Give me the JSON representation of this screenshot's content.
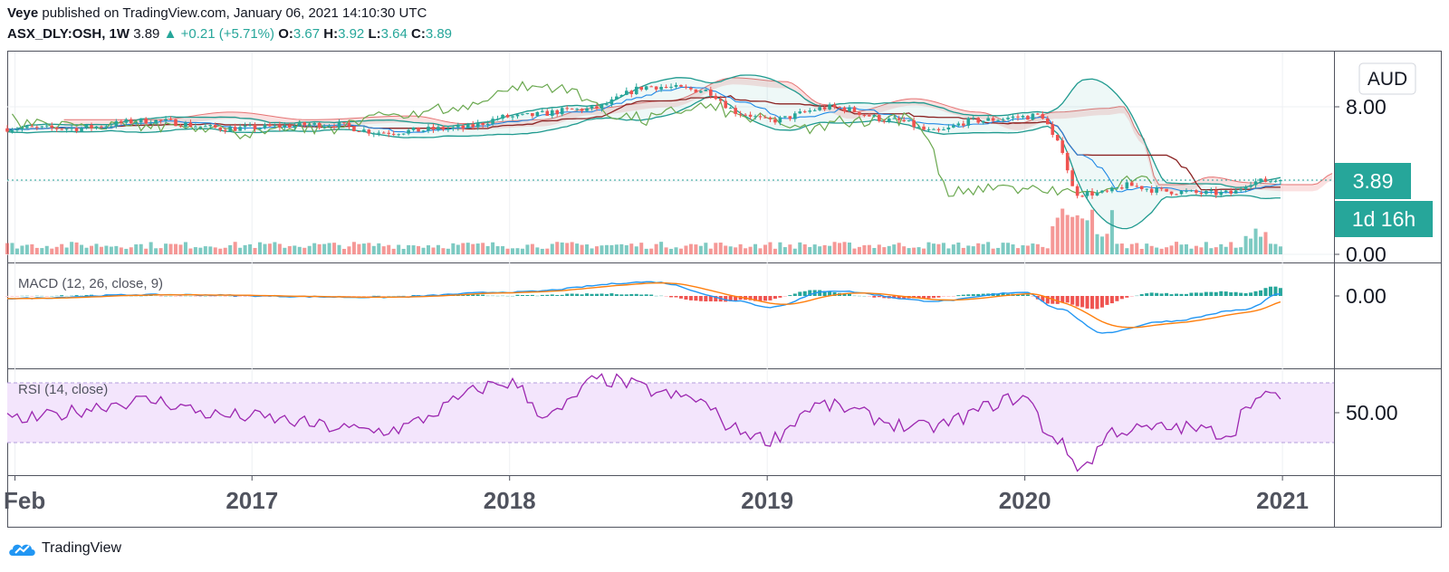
{
  "header": {
    "author": "Veye",
    "published_text": "published on TradingView.com, January 06, 2021 14:10:30 UTC",
    "symbol": "ASX_DLY:OSH, 1W",
    "last": "3.89",
    "change": "+0.21 (+5.71%)",
    "ohlc": [
      {
        "label": "O:",
        "value": "3.67"
      },
      {
        "label": "H:",
        "value": "3.92"
      },
      {
        "label": "L:",
        "value": "3.64"
      },
      {
        "label": "C:",
        "value": "3.89"
      }
    ]
  },
  "currency_label": "AUD",
  "price_badge": "3.89",
  "timer_badge": "1d 16h",
  "footer": {
    "brand": "TradingView"
  },
  "colors": {
    "up": "#26a69a",
    "down": "#ef5350",
    "bb": "#1f9a8f",
    "macd": "#2196f3",
    "signal": "#ff7f0e",
    "rsi": "#9c27b0",
    "rsi_band": "#f3e5fc",
    "lagging": "#6aa84f",
    "baseline": "#8b2323",
    "conversion": "#1e88e5",
    "cloud": "#f7c9c9"
  },
  "chart_data": [
    {
      "type": "candlestick",
      "title": "",
      "y_ticks": [
        "8.00",
        "3.89",
        "0.00"
      ],
      "ylim": [
        0,
        11
      ],
      "x_ticks": [
        "Feb",
        "2017",
        "2018",
        "2019",
        "2020",
        "2021"
      ],
      "x_tick_years": [
        2016.08,
        2017.0,
        2018.0,
        2019.0,
        2020.0,
        2021.0
      ],
      "xlim": [
        2016.05,
        2021.2
      ],
      "series_close_anchors": [
        {
          "t": 2016.05,
          "v": 6.6
        },
        {
          "t": 2016.3,
          "v": 6.6
        },
        {
          "t": 2016.6,
          "v": 7.0
        },
        {
          "t": 2016.9,
          "v": 6.6
        },
        {
          "t": 2017.3,
          "v": 6.8
        },
        {
          "t": 2017.5,
          "v": 6.4
        },
        {
          "t": 2017.8,
          "v": 6.6
        },
        {
          "t": 2018.0,
          "v": 7.2
        },
        {
          "t": 2018.3,
          "v": 7.6
        },
        {
          "t": 2018.55,
          "v": 8.8
        },
        {
          "t": 2018.75,
          "v": 8.6
        },
        {
          "t": 2018.9,
          "v": 7.4
        },
        {
          "t": 2019.0,
          "v": 7.0
        },
        {
          "t": 2019.25,
          "v": 7.7
        },
        {
          "t": 2019.5,
          "v": 7.0
        },
        {
          "t": 2019.65,
          "v": 6.4
        },
        {
          "t": 2019.8,
          "v": 7.0
        },
        {
          "t": 2020.0,
          "v": 7.2
        },
        {
          "t": 2020.06,
          "v": 7.3
        },
        {
          "t": 2020.13,
          "v": 5.8
        },
        {
          "t": 2020.2,
          "v": 3.2
        },
        {
          "t": 2020.3,
          "v": 3.2
        },
        {
          "t": 2020.4,
          "v": 3.6
        },
        {
          "t": 2020.55,
          "v": 3.3
        },
        {
          "t": 2020.7,
          "v": 3.2
        },
        {
          "t": 2020.8,
          "v": 3.2
        },
        {
          "t": 2020.88,
          "v": 3.8
        },
        {
          "t": 2021.0,
          "v": 3.89
        }
      ]
    },
    {
      "type": "macd",
      "title": "MACD (12, 26, close, 9)",
      "y_ticks": [
        "0.00"
      ],
      "macd_anchors": [
        {
          "t": 2016.05,
          "v": -0.1
        },
        {
          "t": 2016.6,
          "v": 0.05
        },
        {
          "t": 2017.5,
          "v": -0.05
        },
        {
          "t": 2018.0,
          "v": 0.15
        },
        {
          "t": 2018.55,
          "v": 0.55
        },
        {
          "t": 2018.9,
          "v": -0.2
        },
        {
          "t": 2019.0,
          "v": -0.45
        },
        {
          "t": 2019.25,
          "v": 0.2
        },
        {
          "t": 2019.65,
          "v": -0.2
        },
        {
          "t": 2020.0,
          "v": 0.15
        },
        {
          "t": 2020.13,
          "v": -0.5
        },
        {
          "t": 2020.3,
          "v": -1.45
        },
        {
          "t": 2020.55,
          "v": -1.0
        },
        {
          "t": 2020.85,
          "v": -0.55
        },
        {
          "t": 2021.0,
          "v": 0.1
        }
      ]
    },
    {
      "type": "rsi",
      "title": "RSI (14, close)",
      "y_ticks": [
        "50.00"
      ],
      "band": [
        30,
        70
      ],
      "rsi_anchors": [
        {
          "t": 2016.05,
          "v": 45
        },
        {
          "t": 2016.6,
          "v": 58
        },
        {
          "t": 2016.9,
          "v": 48
        },
        {
          "t": 2017.5,
          "v": 38
        },
        {
          "t": 2018.0,
          "v": 70
        },
        {
          "t": 2018.15,
          "v": 48
        },
        {
          "t": 2018.35,
          "v": 72
        },
        {
          "t": 2018.7,
          "v": 60
        },
        {
          "t": 2018.9,
          "v": 38
        },
        {
          "t": 2019.0,
          "v": 32
        },
        {
          "t": 2019.2,
          "v": 55
        },
        {
          "t": 2019.6,
          "v": 40
        },
        {
          "t": 2020.0,
          "v": 60
        },
        {
          "t": 2020.1,
          "v": 35
        },
        {
          "t": 2020.22,
          "v": 14
        },
        {
          "t": 2020.35,
          "v": 38
        },
        {
          "t": 2020.6,
          "v": 40
        },
        {
          "t": 2020.8,
          "v": 36
        },
        {
          "t": 2020.87,
          "v": 58
        },
        {
          "t": 2021.0,
          "v": 62
        }
      ]
    }
  ]
}
